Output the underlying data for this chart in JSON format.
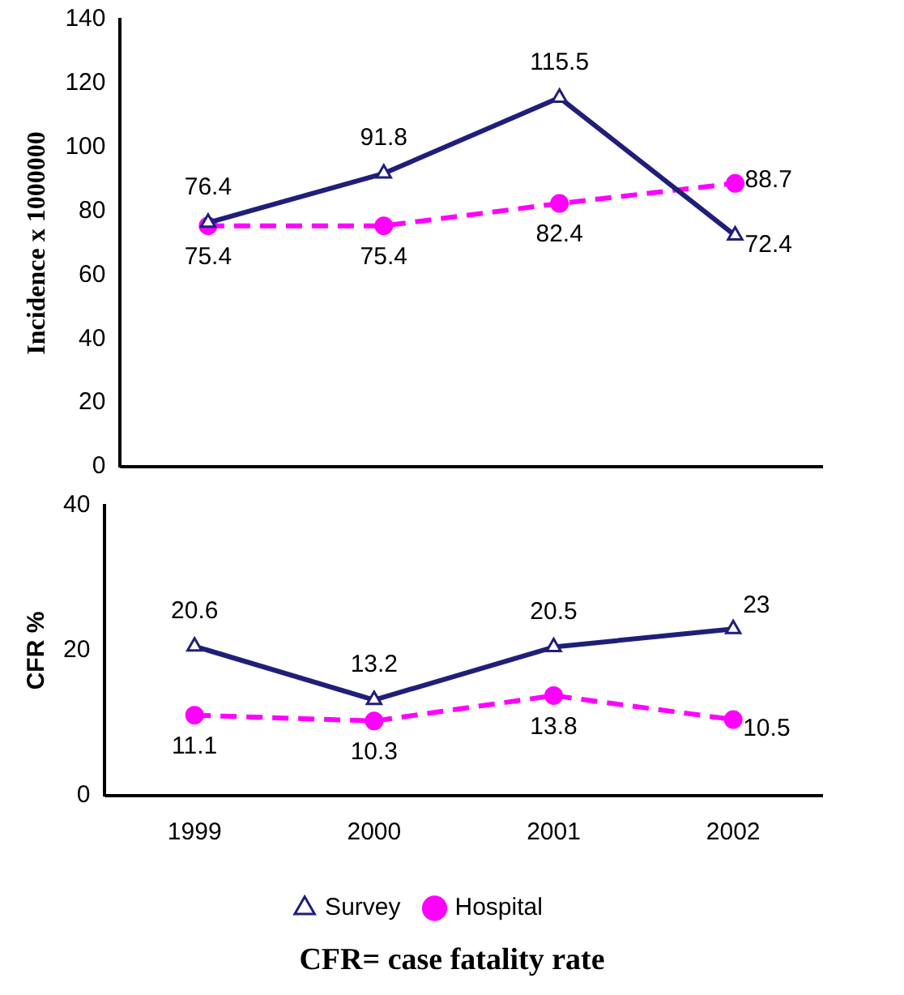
{
  "chart_data": [
    {
      "type": "line",
      "ylabel": "Incidence x 1000000",
      "categories": [
        "1999",
        "2000",
        "2001",
        "2002"
      ],
      "ylim": [
        0,
        140
      ],
      "yticks": [
        0,
        20,
        40,
        60,
        80,
        100,
        120,
        140
      ],
      "tick_labels": "y",
      "grid": false,
      "legend": false,
      "data_labels": true,
      "series": [
        {
          "color": "#1f1f7a",
          "values": [
            76.4,
            91.8,
            115.5,
            72.4
          ],
          "marker": "triangle",
          "line_style": "solid"
        },
        {
          "color": "#ff00ff",
          "values": [
            75.4,
            75.4,
            82.4,
            88.7
          ],
          "marker": "circle",
          "line_style": "dashed"
        }
      ]
    },
    {
      "type": "line",
      "ylabel": "CFR %",
      "categories": [
        "1999",
        "2000",
        "2001",
        "2002"
      ],
      "ylim": [
        0,
        40
      ],
      "yticks": [
        0,
        20,
        40
      ],
      "grid": false,
      "legend": "bottom",
      "data_labels": true,
      "annotations": [
        "CFR= case fatality rate"
      ],
      "series": [
        {
          "name": "Survey",
          "color": "#1f1f7a",
          "values": [
            20.6,
            13.2,
            20.5,
            23
          ],
          "marker": "triangle",
          "line_style": "solid"
        },
        {
          "name": "Hospital",
          "color": "#ff00ff",
          "values": [
            11.1,
            10.3,
            13.8,
            10.5
          ],
          "marker": "circle",
          "line_style": "dashed"
        }
      ]
    }
  ]
}
